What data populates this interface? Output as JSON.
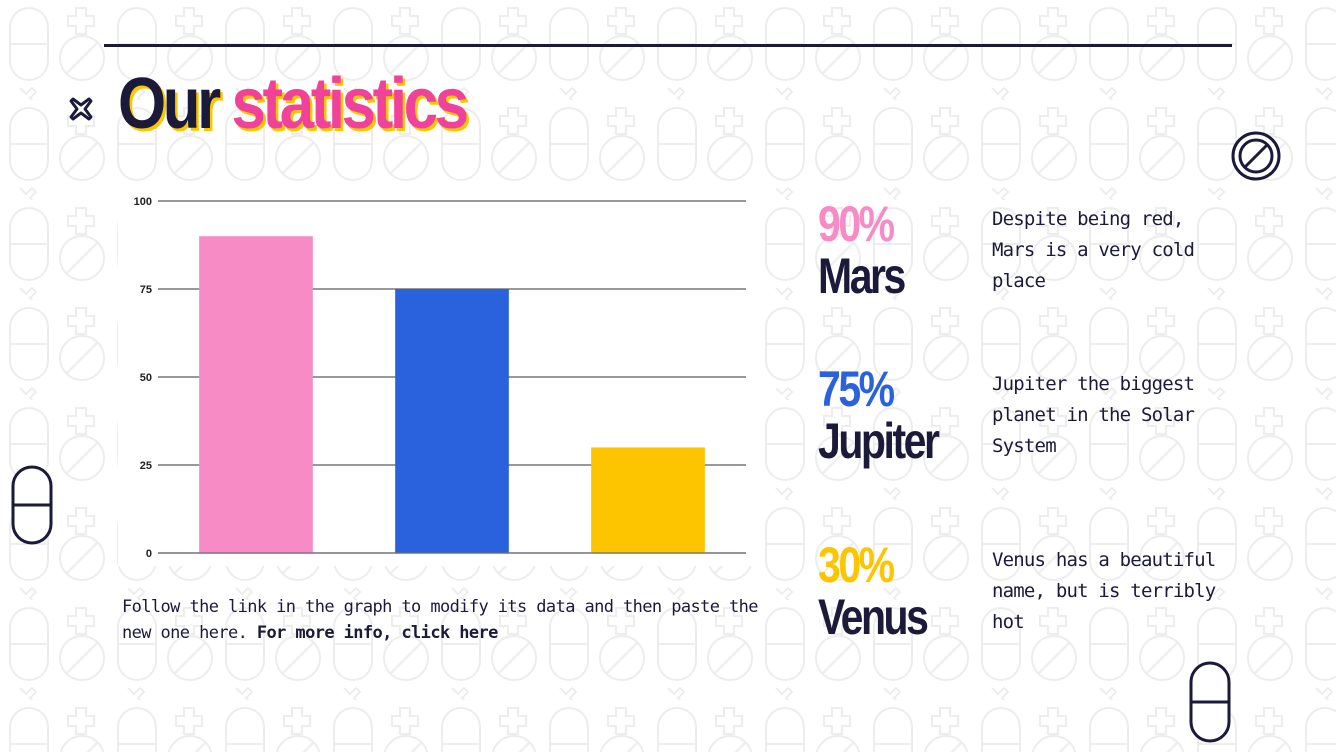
{
  "slide": {
    "title_part1": "Our",
    "title_part2": "statistics",
    "note_text": "Follow the link in the graph to modify its data and then paste the new one here. ",
    "note_link": "For more info, click here"
  },
  "stats": [
    {
      "percent": "90%",
      "planet": "Mars",
      "description": "Despite being red, Mars is a very cold place",
      "color": "#f78bc6"
    },
    {
      "percent": "75%",
      "planet": "Jupiter",
      "description": "Jupiter the biggest planet in the Solar System",
      "color": "#2a62dd"
    },
    {
      "percent": "30%",
      "planet": "Venus",
      "description": "Venus has a beautiful name, but is terribly hot",
      "color": "#fdc500"
    }
  ],
  "icons": {
    "top_left": "x-cross-icon",
    "top_right": "no-sign-icon",
    "left_edge": "pill-icon",
    "bottom_right": "pill-icon"
  },
  "chart_data": {
    "type": "bar",
    "categories": [
      "Mars",
      "Jupiter",
      "Venus"
    ],
    "values": [
      90,
      75,
      30
    ],
    "colors": [
      "#f78bc6",
      "#2a62dd",
      "#fdc500"
    ],
    "ylim": [
      0,
      100
    ],
    "yticks": [
      0,
      25,
      50,
      75,
      100
    ],
    "grid": true,
    "show_category_labels": false
  }
}
